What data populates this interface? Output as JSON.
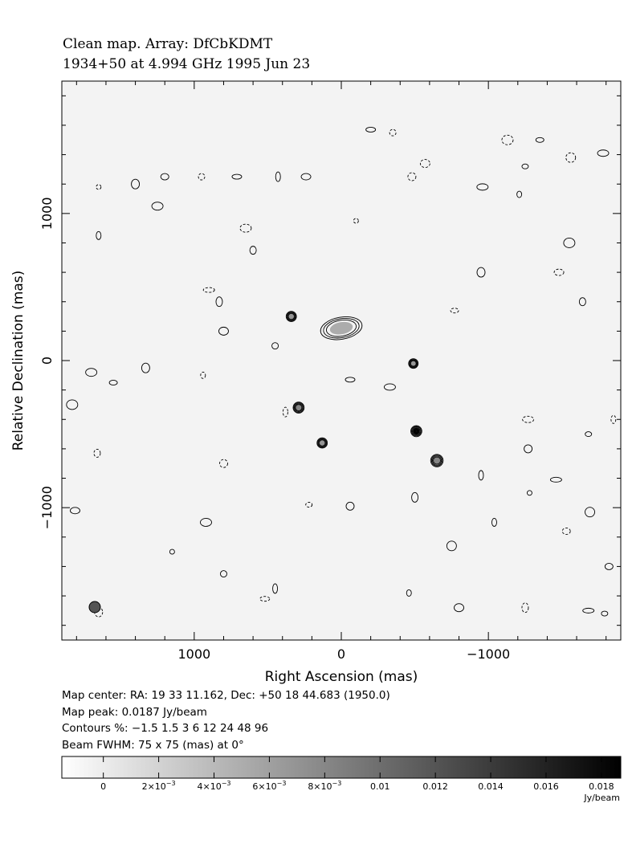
{
  "header": {
    "title_line1": "Clean map.  Array: DfCbKDMT",
    "title_line2": "1934+50 at 4.994 GHz 1995 Jun 23"
  },
  "info": {
    "map_center": "Map center:  RA: 19 33 11.162,  Dec: +50 18 44.683 (1950.0)",
    "map_peak": "Map peak: 0.0187 Jy/beam",
    "contours": "Contours %: −1.5 1.5 3 6 12 24 48 96",
    "beam": "Beam FWHM: 75 x 75 (mas) at 0°"
  },
  "chart_data": {
    "type": "heatmap",
    "xlabel": "Right Ascension  (mas)",
    "ylabel": "Relative Declination  (mas)",
    "xlim": [
      1900,
      -1900
    ],
    "ylim": [
      -1900,
      1900
    ],
    "x_ticks": [
      1000,
      0,
      -1000
    ],
    "x_tick_labels": [
      "1000",
      "0",
      "−1000"
    ],
    "y_ticks": [
      1000,
      0,
      -1000
    ],
    "y_tick_labels": [
      "1000",
      "0",
      "−1000"
    ],
    "contour_levels_percent": [
      -1.5,
      1.5,
      3,
      6,
      12,
      24,
      48,
      96
    ],
    "peak_jy_per_beam": 0.0187,
    "sources": [
      {
        "ra": 340,
        "dec": 300,
        "peak_fraction": 0.32,
        "size": 70
      },
      {
        "ra": 0,
        "dec": 220,
        "peak_fraction": 0.18,
        "size": 150
      },
      {
        "ra": 290,
        "dec": -320,
        "peak_fraction": 0.4,
        "size": 75
      },
      {
        "ra": 130,
        "dec": -560,
        "peak_fraction": 0.32,
        "size": 70
      },
      {
        "ra": -490,
        "dec": -20,
        "peak_fraction": 0.3,
        "size": 65
      },
      {
        "ra": -510,
        "dec": -480,
        "peak_fraction": 1.0,
        "size": 75
      },
      {
        "ra": -650,
        "dec": -680,
        "peak_fraction": 0.4,
        "size": 85
      }
    ],
    "noise_islands": [
      [
        1650,
        1180
      ],
      [
        1400,
        1200
      ],
      [
        1250,
        1050
      ],
      [
        950,
        1250
      ],
      [
        710,
        1250
      ],
      [
        430,
        1250
      ],
      [
        -480,
        1250
      ],
      [
        -960,
        1180
      ],
      [
        -1250,
        1320
      ],
      [
        -1560,
        1380
      ],
      [
        1650,
        850
      ],
      [
        1200,
        1250
      ],
      [
        900,
        480
      ],
      [
        830,
        400
      ],
      [
        800,
        200
      ],
      [
        940,
        -100
      ],
      [
        1550,
        -150
      ],
      [
        1830,
        -300
      ],
      [
        1660,
        -630
      ],
      [
        1810,
        -1020
      ],
      [
        1150,
        -1300
      ],
      [
        1650,
        -1710
      ],
      [
        920,
        -1100
      ],
      [
        800,
        -1450
      ],
      [
        520,
        -1620
      ],
      [
        -950,
        -780
      ],
      [
        -1270,
        -600
      ],
      [
        -1270,
        -400
      ],
      [
        -1680,
        -500
      ],
      [
        -1690,
        -1030
      ],
      [
        -1850,
        -400
      ],
      [
        -1820,
        -1400
      ],
      [
        -1680,
        -1700
      ],
      [
        -1250,
        -1680
      ],
      [
        -800,
        -1680
      ],
      [
        -460,
        -1580
      ],
      [
        -770,
        340
      ],
      [
        -1550,
        800
      ],
      [
        -1640,
        400
      ],
      [
        -1480,
        600
      ],
      [
        -1280,
        -900
      ],
      [
        -950,
        600
      ],
      [
        650,
        900
      ],
      [
        450,
        100
      ],
      [
        -60,
        -130
      ],
      [
        380,
        -350
      ],
      [
        -60,
        -990
      ],
      [
        -330,
        -180
      ],
      [
        220,
        -980
      ],
      [
        -750,
        -1260
      ],
      [
        -1040,
        -1100
      ],
      [
        -1530,
        -1160
      ],
      [
        -1460,
        -810
      ],
      [
        -500,
        -930
      ],
      [
        -570,
        1340
      ],
      [
        -1210,
        1130
      ],
      [
        -1350,
        1500
      ],
      [
        -1130,
        1500
      ],
      [
        600,
        750
      ],
      [
        240,
        1250
      ],
      [
        -100,
        950
      ],
      [
        1330,
        -50
      ],
      [
        1700,
        -80
      ],
      [
        -350,
        1550
      ],
      [
        -200,
        1570
      ],
      [
        450,
        -1550
      ],
      [
        800,
        -700
      ],
      [
        -1780,
        1410
      ],
      [
        -1790,
        -1720
      ]
    ]
  },
  "colorbar": {
    "ticks": [
      0,
      0.002,
      0.004,
      0.006,
      0.008,
      0.01,
      0.012,
      0.014,
      0.016,
      0.018
    ],
    "tick_labels": [
      {
        "mantissa": "0",
        "exp": ""
      },
      {
        "mantissa": "2×10",
        "exp": "−3"
      },
      {
        "mantissa": "4×10",
        "exp": "−3"
      },
      {
        "mantissa": "6×10",
        "exp": "−3"
      },
      {
        "mantissa": "8×10",
        "exp": "−3"
      },
      {
        "mantissa": "0.01",
        "exp": ""
      },
      {
        "mantissa": "0.012",
        "exp": ""
      },
      {
        "mantissa": "0.014",
        "exp": ""
      },
      {
        "mantissa": "0.016",
        "exp": ""
      },
      {
        "mantissa": "0.018",
        "exp": ""
      }
    ],
    "range": [
      -0.0015,
      0.0187
    ],
    "unit": "Jy/beam"
  }
}
